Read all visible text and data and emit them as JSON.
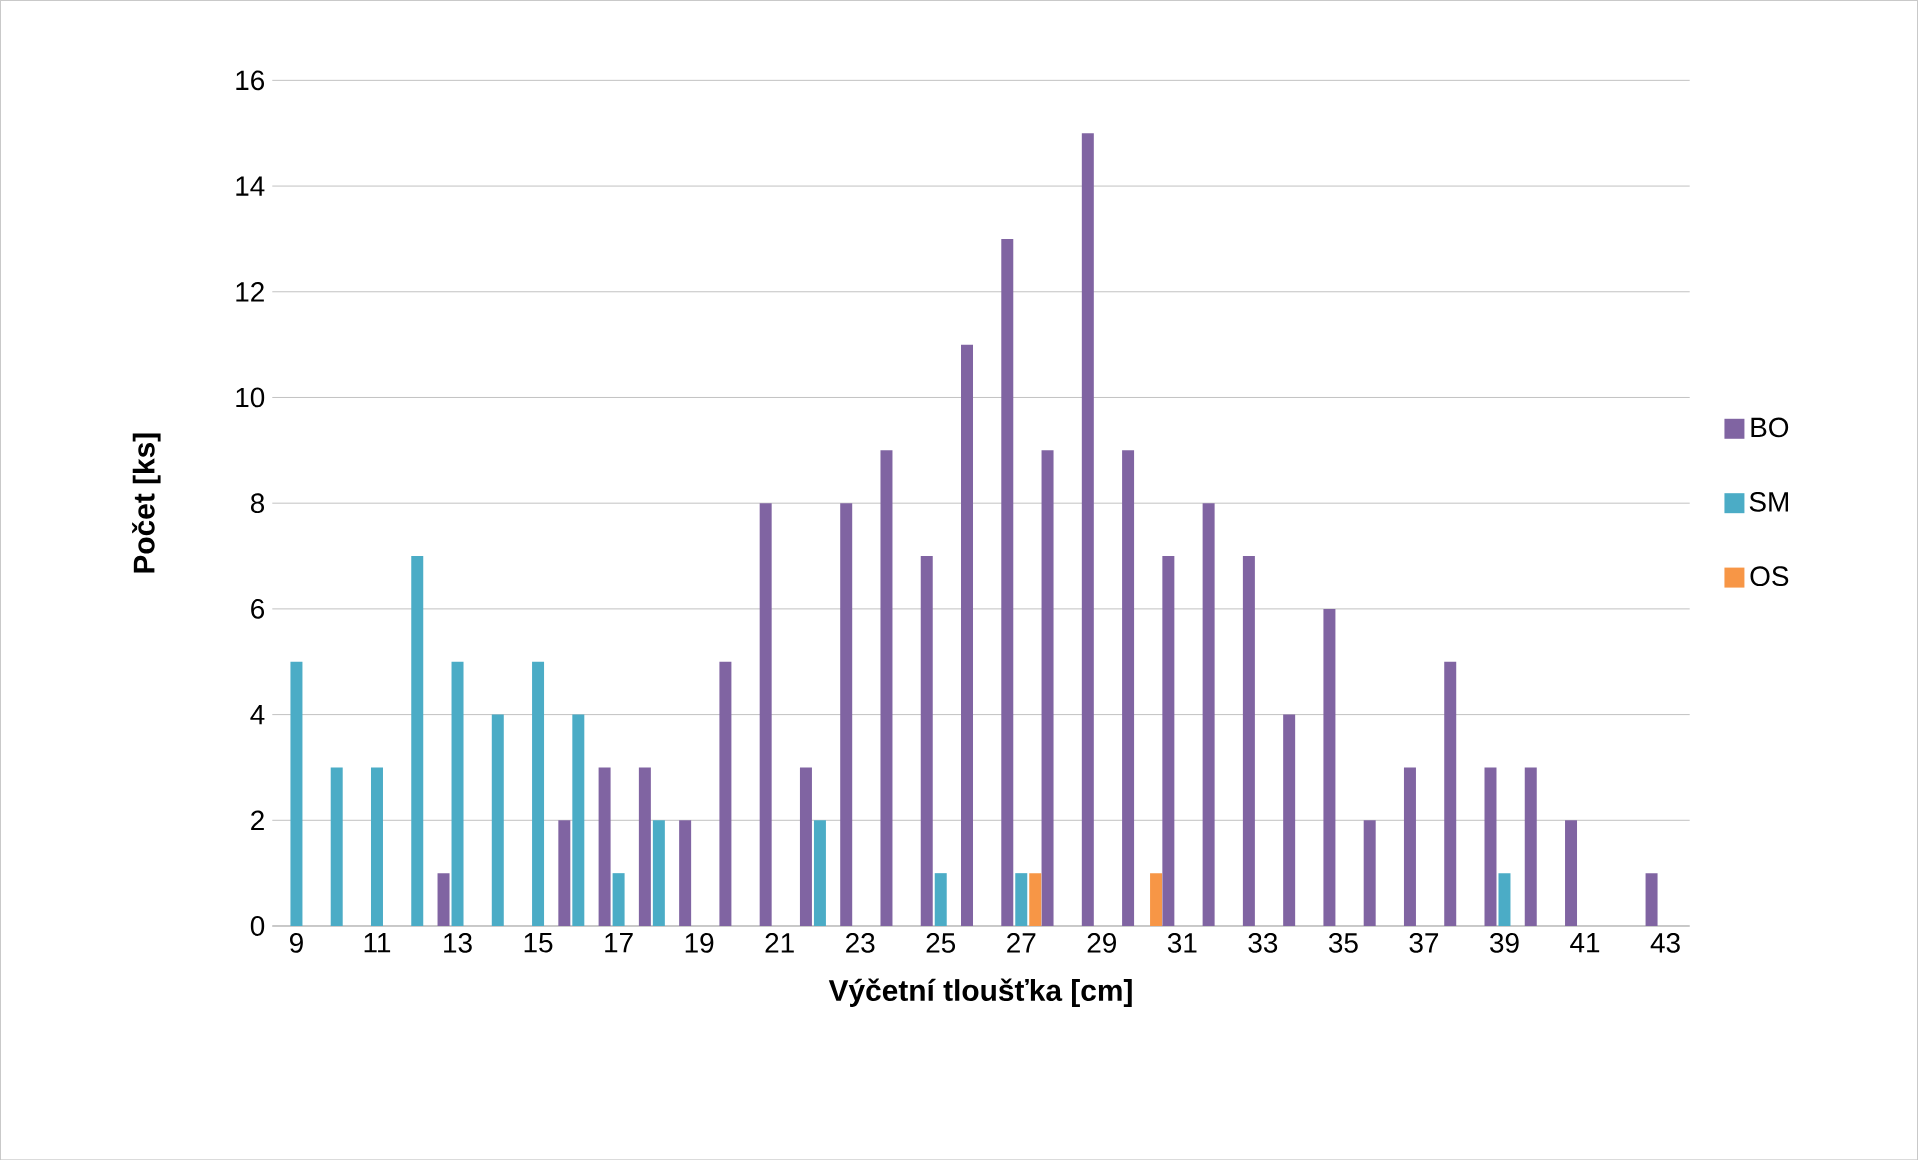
{
  "chart_data": {
    "type": "bar",
    "xlabel": "Výčetní tloušťka [cm]",
    "ylabel": "Počet [ks]",
    "categories": [
      "9",
      null,
      "11",
      null,
      "13",
      null,
      "15",
      null,
      "17",
      null,
      "19",
      null,
      "21",
      null,
      "23",
      null,
      "25",
      null,
      "27",
      null,
      "29",
      null,
      "31",
      null,
      "33",
      null,
      "35",
      null,
      "37",
      null,
      "39",
      null,
      "41",
      null,
      "43"
    ],
    "series": [
      {
        "name": "BO",
        "color": "#8064a2",
        "values": [
          null,
          null,
          null,
          null,
          1,
          null,
          null,
          2,
          3,
          3,
          2,
          5,
          8,
          3,
          8,
          9,
          7,
          11,
          13,
          9,
          15,
          9,
          7,
          8,
          7,
          4,
          6,
          2,
          3,
          5,
          3,
          3,
          2,
          null,
          1
        ]
      },
      {
        "name": "SM",
        "color": "#4bacc6",
        "values": [
          5,
          3,
          3,
          7,
          5,
          4,
          5,
          4,
          1,
          2,
          null,
          null,
          null,
          2,
          null,
          null,
          1,
          null,
          1,
          null,
          null,
          null,
          null,
          null,
          null,
          null,
          null,
          null,
          null,
          null,
          1,
          null,
          null,
          null,
          null
        ]
      },
      {
        "name": "OS",
        "color": "#f79646",
        "values": [
          null,
          null,
          null,
          null,
          null,
          null,
          null,
          null,
          null,
          null,
          null,
          null,
          null,
          null,
          null,
          null,
          null,
          null,
          1,
          null,
          null,
          1,
          null,
          null,
          null,
          null,
          null,
          null,
          null,
          null,
          null,
          null,
          null,
          null,
          null
        ]
      }
    ],
    "ylim": [
      0,
      16
    ],
    "yticks": [
      0,
      2,
      4,
      6,
      8,
      10,
      12,
      14,
      16
    ],
    "grid": "y",
    "legend": "right"
  }
}
